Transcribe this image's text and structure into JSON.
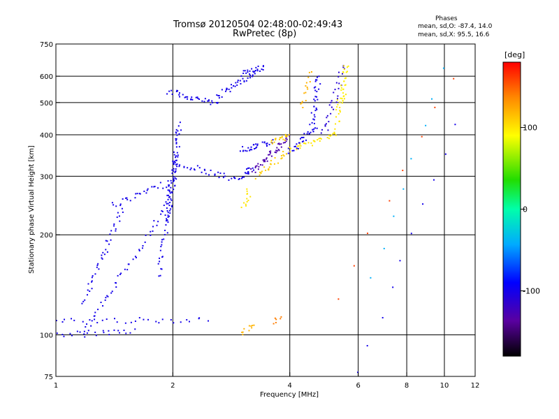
{
  "chart_data": {
    "type": "scatter",
    "title": "Tromsø 20120504 02:48:00-02:49:43",
    "subtitle": "RwPretec (8p)",
    "xlabel": "Frequency [MHz]",
    "ylabel": "Stationary phase Virtual Height [km]",
    "x_scale": "log",
    "y_scale": "log",
    "xlim": [
      1,
      12
    ],
    "ylim": [
      75,
      750
    ],
    "x_ticks": [
      "1",
      "2",
      "4",
      "6",
      "8",
      "10",
      "12"
    ],
    "y_ticks": [
      "75",
      "100",
      "200",
      "300",
      "400",
      "500",
      "600",
      "750"
    ],
    "grid": true,
    "phases_box": {
      "title": "Phases",
      "line1": "mean, sd,O: -87.4, 14.0",
      "line2": "mean, sd,X:  95.5, 16.6"
    },
    "colorbar": {
      "label": "[deg]",
      "range": [
        -180,
        180
      ],
      "ticks": [
        "100",
        "0",
        "-100"
      ]
    },
    "traces": [
      {
        "phase": -100,
        "count": 24,
        "x": [
          1.0,
          1.6
        ],
        "y": [
          100,
          103
        ]
      },
      {
        "phase": -100,
        "count": 30,
        "x": [
          1.0,
          2.45
        ],
        "y": [
          110,
          111
        ]
      },
      {
        "phase": -100,
        "count": 50,
        "x": [
          1.18,
          1.95
        ],
        "y": [
          100,
          250
        ]
      },
      {
        "phase": -100,
        "count": 40,
        "x": [
          1.18,
          1.48
        ],
        "y": [
          125,
          240
        ]
      },
      {
        "phase": -100,
        "count": 30,
        "x": [
          1.4,
          2.0
        ],
        "y": [
          245,
          290
        ]
      },
      {
        "phase": -100,
        "count": 45,
        "x": [
          1.85,
          2.03
        ],
        "y": [
          150,
          350
        ]
      },
      {
        "phase": -100,
        "count": 60,
        "x": [
          1.95,
          2.08
        ],
        "y": [
          220,
          430
        ]
      },
      {
        "phase": -100,
        "count": 35,
        "x": [
          2.0,
          3.0
        ],
        "y": [
          330,
          290
        ]
      },
      {
        "phase": -100,
        "count": 35,
        "x": [
          1.95,
          2.6
        ],
        "y": [
          540,
          495
        ]
      },
      {
        "phase": -100,
        "count": 35,
        "x": [
          2.6,
          3.3
        ],
        "y": [
          520,
          620
        ]
      },
      {
        "phase": -100,
        "count": 20,
        "x": [
          3.0,
          3.45
        ],
        "y": [
          610,
          640
        ]
      },
      {
        "phase": -100,
        "count": 30,
        "x": [
          3.0,
          3.6
        ],
        "y": [
          360,
          380
        ]
      },
      {
        "phase": -100,
        "count": 30,
        "x": [
          4.0,
          4.65
        ],
        "y": [
          355,
          420
        ]
      },
      {
        "phase": -100,
        "count": 30,
        "x": [
          4.55,
          4.75
        ],
        "y": [
          420,
          600
        ]
      },
      {
        "phase": -100,
        "count": 15,
        "x": [
          3.0,
          3.2
        ],
        "y": [
          300,
          315
        ]
      },
      {
        "phase": -130,
        "count": 45,
        "x": [
          3.2,
          4.0
        ],
        "y": [
          310,
          395
        ]
      },
      {
        "phase": -110,
        "count": 30,
        "x": [
          4.9,
          5.5
        ],
        "y": [
          400,
          640
        ]
      },
      {
        "phase": 110,
        "count": 25,
        "x": [
          3.3,
          3.9
        ],
        "y": [
          300,
          350
        ]
      },
      {
        "phase": 110,
        "count": 20,
        "x": [
          3.6,
          4.0
        ],
        "y": [
          380,
          400
        ]
      },
      {
        "phase": 100,
        "count": 30,
        "x": [
          4.0,
          5.2
        ],
        "y": [
          360,
          400
        ]
      },
      {
        "phase": 120,
        "count": 15,
        "x": [
          4.3,
          4.55
        ],
        "y": [
          480,
          620
        ]
      },
      {
        "phase": 100,
        "count": 15,
        "x": [
          5.2,
          5.5
        ],
        "y": [
          400,
          520
        ]
      },
      {
        "phase": 95,
        "count": 30,
        "x": [
          5.35,
          5.6
        ],
        "y": [
          480,
          650
        ]
      },
      {
        "phase": 100,
        "count": 12,
        "x": [
          3.05,
          3.15
        ],
        "y": [
          240,
          275
        ]
      },
      {
        "phase": 120,
        "count": 10,
        "x": [
          3.0,
          3.25
        ],
        "y": [
          100,
          108
        ]
      },
      {
        "phase": 140,
        "count": 6,
        "x": [
          3.6,
          3.8
        ],
        "y": [
          108,
          112
        ]
      },
      {
        "phase": 160,
        "count": 8,
        "x": [
          5.3,
          10.5
        ],
        "y": [
          130,
          600
        ]
      },
      {
        "phase": -40,
        "count": 8,
        "x": [
          6.5,
          10.0
        ],
        "y": [
          150,
          640
        ]
      },
      {
        "phase": -100,
        "count": 10,
        "x": [
          6.0,
          10.8
        ],
        "y": [
          78,
          430
        ]
      }
    ]
  }
}
